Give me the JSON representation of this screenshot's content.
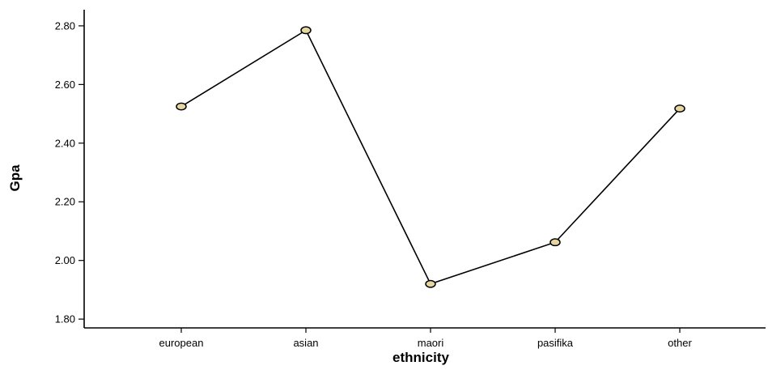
{
  "chart_data": {
    "type": "line",
    "title": "",
    "xlabel": "ethnicity",
    "ylabel": "Gpa",
    "categories": [
      "european",
      "asian",
      "maori",
      "pasifika",
      "other"
    ],
    "series": [
      {
        "values": [
          2.525,
          2.785,
          1.92,
          2.062,
          2.518
        ]
      }
    ],
    "ylim": [
      1.77,
      2.855
    ],
    "yticks": [
      "1.80",
      "2.00",
      "2.20",
      "2.40",
      "2.60",
      "2.80"
    ],
    "grid": false,
    "legend": "none",
    "colors": {
      "line": "#000000",
      "marker_fill": "#e6d7a2",
      "marker_stroke": "#000000",
      "axis": "#000000"
    }
  }
}
